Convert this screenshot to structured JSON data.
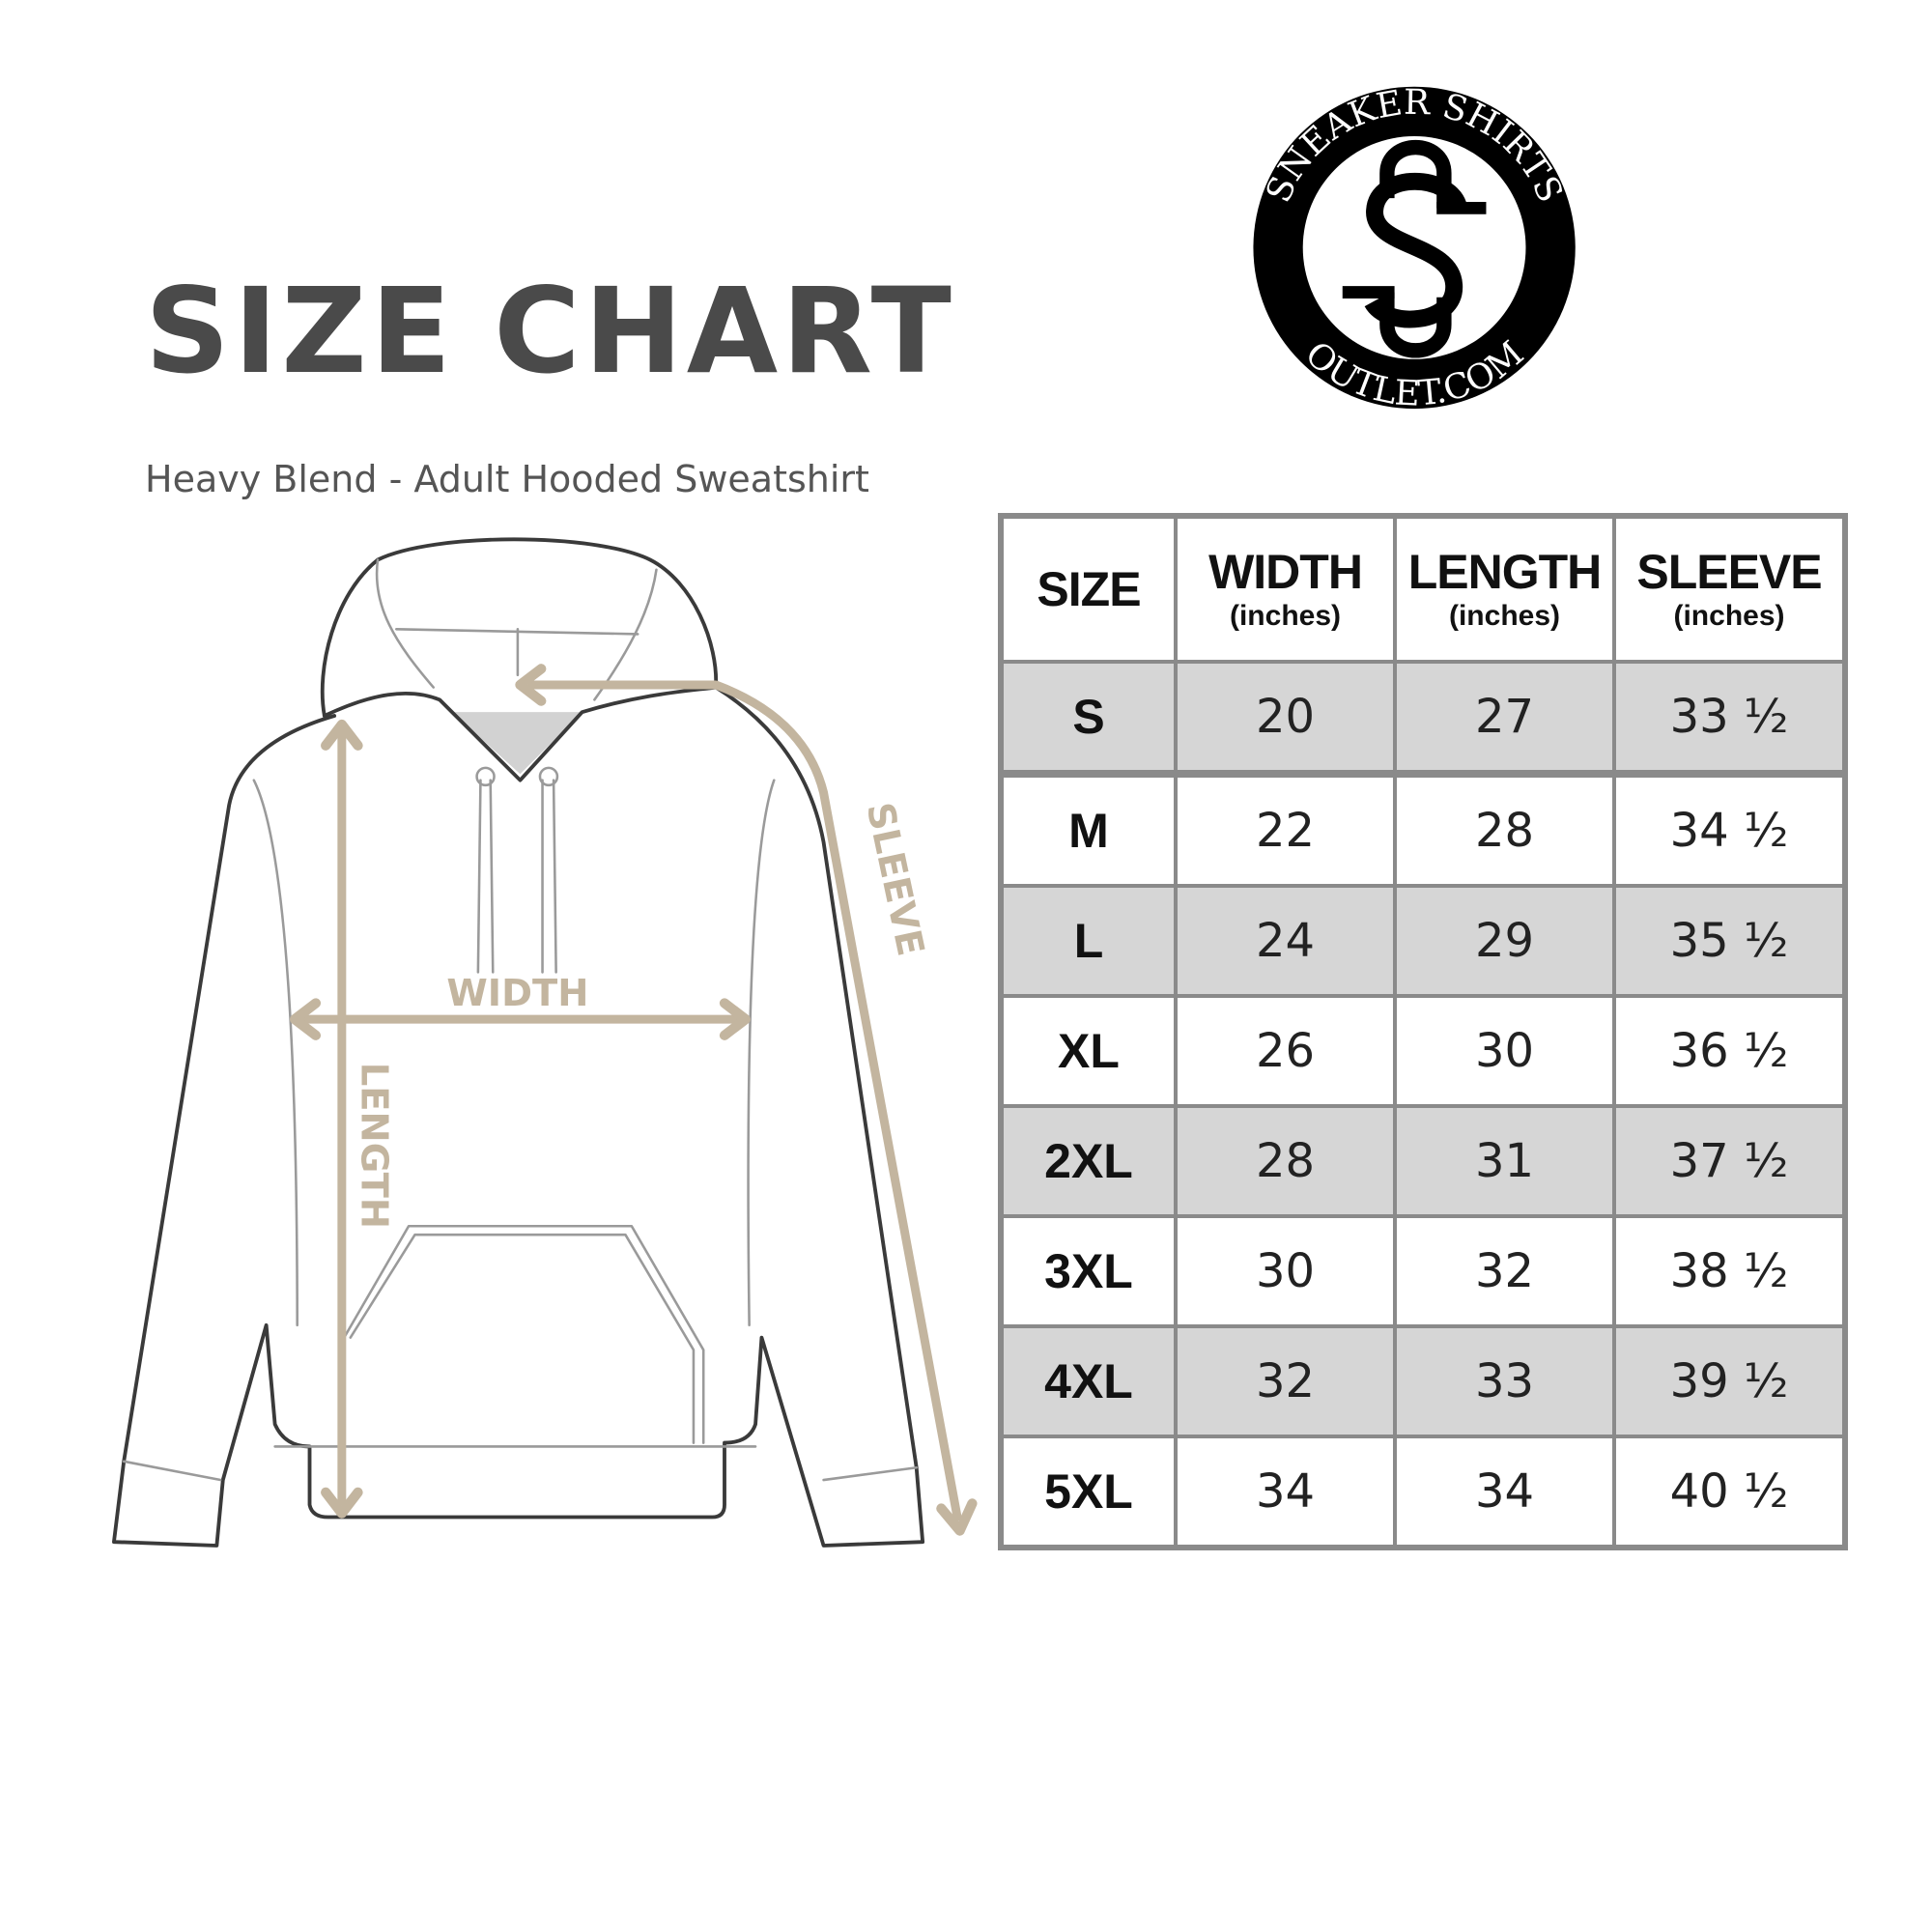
{
  "title_words": [
    "SIZE",
    "CHART"
  ],
  "subtitle": "Heavy Blend - Adult Hooded Sweatshirt",
  "logo": {
    "top_text": "SNEAKER SHIRTS",
    "bottom_text": "OUTLET.COM",
    "monogram": "SS"
  },
  "diagram": {
    "labels": {
      "width": "WIDTH",
      "length": "LENGTH",
      "sleeve": "SLEEVE"
    },
    "arrow_color": "#c3b59f",
    "outline_color": "#3a3a3a"
  },
  "table": {
    "headers": [
      {
        "label": "SIZE",
        "unit": ""
      },
      {
        "label": "WIDTH",
        "unit": "(inches)"
      },
      {
        "label": "LENGTH",
        "unit": "(inches)"
      },
      {
        "label": "SLEEVE",
        "unit": "(inches)"
      }
    ],
    "rows": [
      [
        "S",
        "20",
        "27",
        "33 ½"
      ],
      [
        "M",
        "22",
        "28",
        "34 ½"
      ],
      [
        "L",
        "24",
        "29",
        "35 ½"
      ],
      [
        "XL",
        "26",
        "30",
        "36 ½"
      ],
      [
        "2XL",
        "28",
        "31",
        "37 ½"
      ],
      [
        "3XL",
        "30",
        "32",
        "38 ½"
      ],
      [
        "4XL",
        "32",
        "33",
        "39 ½"
      ],
      [
        "5XL",
        "34",
        "34",
        "40 ½"
      ]
    ],
    "shade_color": "#d6d6d6",
    "border_color": "#8a8a8a"
  }
}
